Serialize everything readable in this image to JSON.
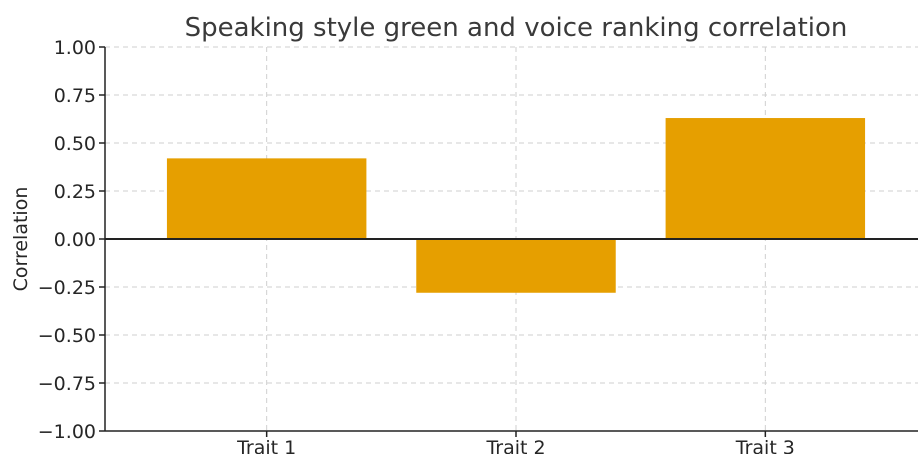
{
  "chart_data": {
    "type": "bar",
    "title": "Speaking style green and voice ranking correlation",
    "xlabel": "",
    "ylabel": "Correlation",
    "categories": [
      "Trait 1",
      "Trait 2",
      "Trait 3"
    ],
    "values": [
      0.42,
      -0.28,
      0.63
    ],
    "ylim": [
      -1.0,
      1.0
    ],
    "yticks": [
      1.0,
      0.75,
      0.5,
      0.25,
      0.0,
      -0.25,
      -0.5,
      -0.75,
      -1.0
    ],
    "ytick_labels": [
      "1.00",
      "0.75",
      "0.50",
      "0.25",
      "0.00",
      "−0.25",
      "−0.50",
      "−0.75",
      "−1.00"
    ],
    "grid": true,
    "bar_color": "#E69F00",
    "legend": "none"
  }
}
